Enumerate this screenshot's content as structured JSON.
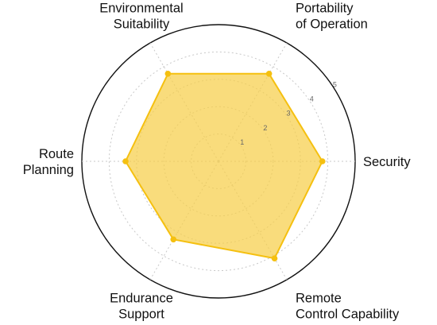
{
  "chart_data": {
    "type": "radar",
    "axes": [
      {
        "label_lines": [
          "Security"
        ]
      },
      {
        "label_lines": [
          "Portability",
          "of Operation"
        ]
      },
      {
        "label_lines": [
          "Environmental",
          "Suitability"
        ]
      },
      {
        "label_lines": [
          "Route",
          "Planning"
        ]
      },
      {
        "label_lines": [
          "Endurance",
          "Support"
        ]
      },
      {
        "label_lines": [
          "Remote",
          "Control Capability"
        ]
      }
    ],
    "ticks": [
      "1",
      "2",
      "3",
      "4",
      "5"
    ],
    "range": [
      0,
      5
    ],
    "grid": "dashed circles",
    "series": [
      {
        "values": [
          3.8,
          3.7,
          3.7,
          3.4,
          3.3,
          4.1
        ]
      }
    ],
    "colors": {
      "line": "#f5c010",
      "fill": "#f7cf4a",
      "outer_ring": "#111111",
      "grid": "#c8c8c8"
    }
  }
}
